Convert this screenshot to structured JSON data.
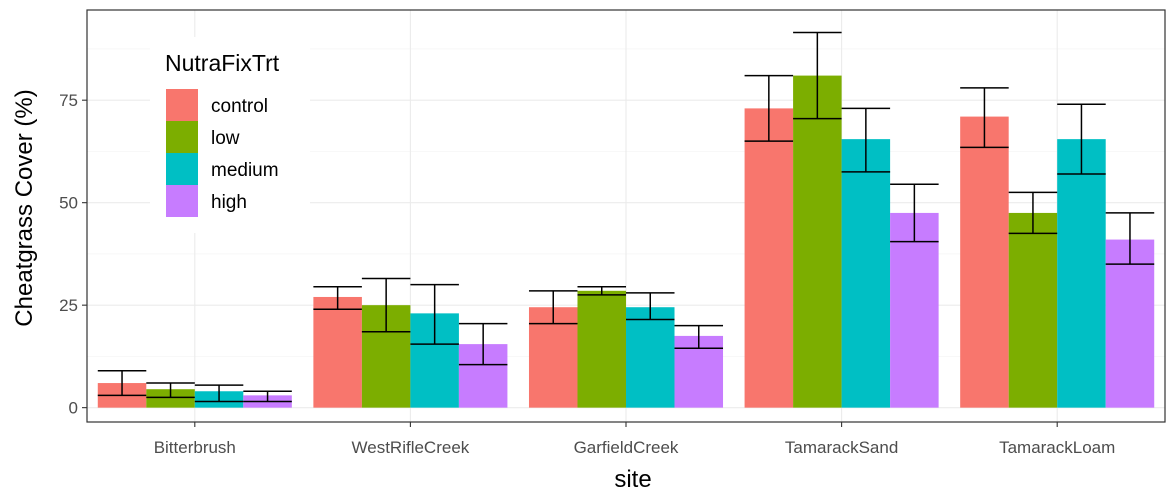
{
  "chart_data": {
    "type": "bar",
    "xlabel": "site",
    "ylabel": "Cheatgrass Cover (%)",
    "categories": [
      "Bitterbrush",
      "WestRifleCreek",
      "GarfieldCreek",
      "TamarackSand",
      "TamarackLoam"
    ],
    "ylim": [
      -3.5,
      97
    ],
    "yticks": [
      0,
      25,
      50,
      75
    ],
    "grid": true,
    "legend": {
      "title": "NutraFixTrt",
      "position": "top-left"
    },
    "series": [
      {
        "name": "control",
        "color": "#F8766D",
        "values": [
          6,
          27,
          24.5,
          73,
          71
        ],
        "error_low": [
          3,
          24,
          20.5,
          65,
          63.5
        ],
        "error_high": [
          9,
          29.5,
          28.5,
          81,
          78
        ]
      },
      {
        "name": "low",
        "color": "#7CAE00",
        "values": [
          4.5,
          25,
          28.5,
          81,
          47.5
        ],
        "error_low": [
          2.5,
          18.5,
          27.5,
          70.5,
          42.5
        ],
        "error_high": [
          6,
          31.5,
          29.5,
          91.5,
          52.5
        ]
      },
      {
        "name": "medium",
        "color": "#00BFC4",
        "values": [
          4,
          23,
          24.5,
          65.5,
          65.5
        ],
        "error_low": [
          1.5,
          15.5,
          21.5,
          57.5,
          57
        ],
        "error_high": [
          5.5,
          30,
          28,
          73,
          74
        ]
      },
      {
        "name": "high",
        "color": "#C77CFF",
        "values": [
          3,
          15.5,
          17.5,
          47.5,
          41
        ],
        "error_low": [
          1.5,
          10.5,
          14.5,
          40.5,
          35
        ],
        "error_high": [
          4,
          20.5,
          20,
          54.5,
          47.5
        ]
      }
    ]
  }
}
